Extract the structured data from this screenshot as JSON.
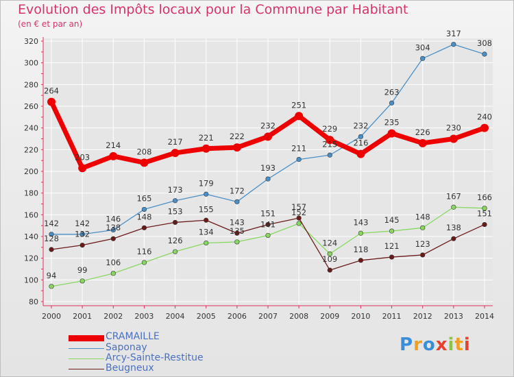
{
  "title": "Evolution des Impôts locaux pour la Commune par Habitant",
  "subtitle": "(en € et par an)",
  "logo": "Proxiti",
  "colors": {
    "title": "#d6336c",
    "axis": "#dc2d5a",
    "grid": "#ffffff",
    "label": "#333333"
  },
  "chart_data": {
    "type": "line",
    "title": "Evolution des Impôts locaux pour la Commune par Habitant",
    "subtitle": "(en € et par an)",
    "x": [
      2000,
      2001,
      2002,
      2003,
      2004,
      2005,
      2006,
      2007,
      2008,
      2009,
      2010,
      2011,
      2012,
      2013,
      2014
    ],
    "ylim": [
      80,
      320
    ],
    "yticks": [
      80,
      100,
      120,
      140,
      160,
      180,
      200,
      220,
      240,
      260,
      280,
      300,
      320
    ],
    "grid": true,
    "legend": "bottom-left",
    "series": [
      {
        "name": "CRAMAILLE",
        "color": "#ee0000",
        "values": [
          264,
          203,
          214,
          208,
          217,
          221,
          222,
          232,
          251,
          229,
          216,
          235,
          226,
          230,
          240
        ]
      },
      {
        "name": "Saponay",
        "color": "#4a90c8",
        "values": [
          142,
          142,
          146,
          165,
          173,
          179,
          172,
          193,
          211,
          215,
          232,
          263,
          304,
          317,
          308
        ]
      },
      {
        "name": "Arcy-Sainte-Restitue",
        "color": "#88d860",
        "values": [
          94,
          99,
          106,
          116,
          126,
          134,
          135,
          141,
          152,
          124,
          143,
          145,
          148,
          167,
          166
        ]
      },
      {
        "name": "Beugneux",
        "color": "#6b1a1a",
        "values": [
          128,
          132,
          138,
          148,
          153,
          155,
          143,
          151,
          157,
          109,
          118,
          121,
          123,
          138,
          151
        ]
      }
    ]
  }
}
